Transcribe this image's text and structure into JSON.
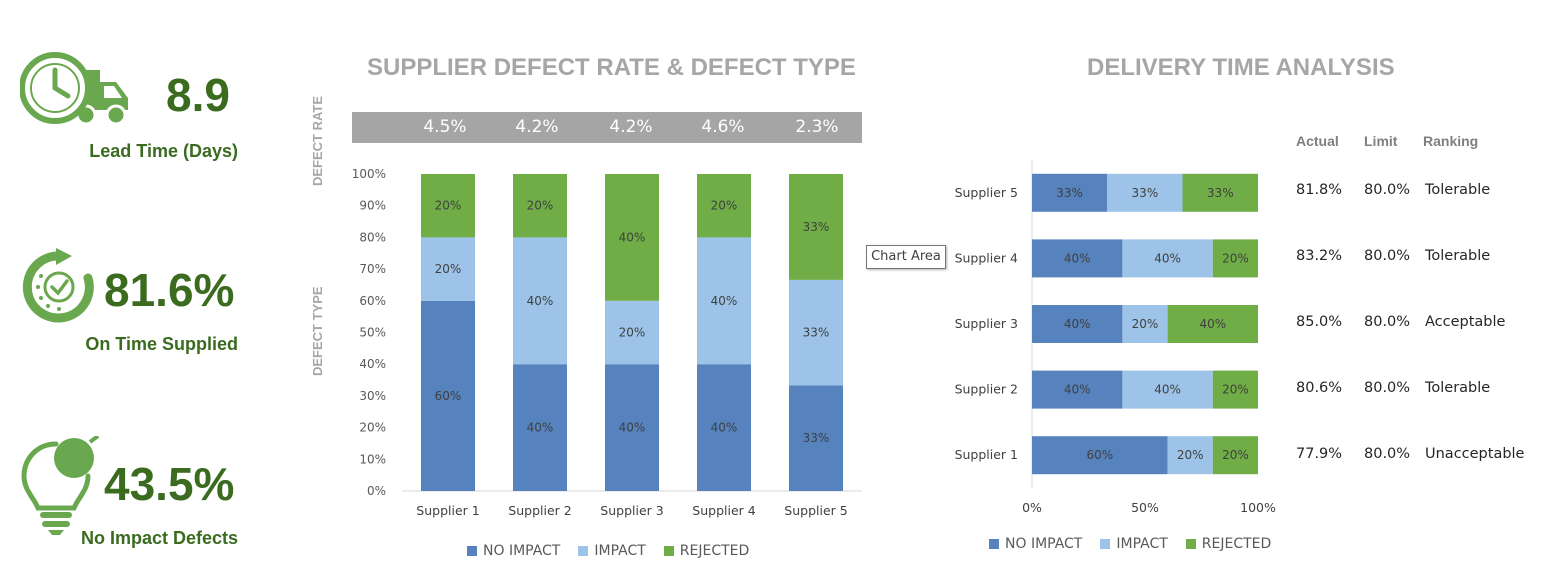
{
  "kpis": {
    "lead_time": {
      "value": "8.9",
      "label": "Lead Time (Days)"
    },
    "on_time": {
      "value": "81.6%",
      "label": "On Time Supplied"
    },
    "no_impact": {
      "value": "43.5%",
      "label": "No Impact Defects"
    }
  },
  "colors": {
    "no_impact": "#5682bd",
    "impact": "#9dc4e8",
    "rejected": "#70ad47",
    "kpi_green": "#6aa84f",
    "kpi_text": "#3a6b1f",
    "title_gray": "#a6a6a6"
  },
  "tooltip": "Chart Area",
  "table": {
    "headers": {
      "actual": "Actual",
      "limit": "Limit",
      "ranking": "Ranking"
    },
    "rows": [
      {
        "supplier": "Supplier 5",
        "actual": "81.8%",
        "limit": "80.0%",
        "ranking": "Tolerable"
      },
      {
        "supplier": "Supplier 4",
        "actual": "83.2%",
        "limit": "80.0%",
        "ranking": "Tolerable"
      },
      {
        "supplier": "Supplier 3",
        "actual": "85.0%",
        "limit": "80.0%",
        "ranking": "Acceptable"
      },
      {
        "supplier": "Supplier 2",
        "actual": "80.6%",
        "limit": "80.0%",
        "ranking": "Tolerable"
      },
      {
        "supplier": "Supplier 1",
        "actual": "77.9%",
        "limit": "80.0%",
        "ranking": "Unacceptable"
      }
    ]
  },
  "chart_data": [
    {
      "type": "bar",
      "stacked": true,
      "orientation": "vertical",
      "title": "SUPPLIER DEFECT RATE & DEFECT TYPE",
      "rate_label": "DEFECT RATE",
      "ylabel": "DEFECT TYPE",
      "categories": [
        "Supplier 1",
        "Supplier 2",
        "Supplier 3",
        "Supplier 4",
        "Supplier 5"
      ],
      "defect_rates": [
        "4.5%",
        "4.2%",
        "4.2%",
        "4.6%",
        "2.3%"
      ],
      "yticks": [
        "0%",
        "10%",
        "20%",
        "30%",
        "40%",
        "50%",
        "60%",
        "70%",
        "80%",
        "90%",
        "100%"
      ],
      "ylim": [
        0,
        100
      ],
      "series": [
        {
          "name": "NO IMPACT",
          "values": [
            60,
            40,
            40,
            40,
            33.3
          ],
          "labels": [
            "60%",
            "40%",
            "40%",
            "40%",
            "33%"
          ]
        },
        {
          "name": "IMPACT",
          "values": [
            20,
            40,
            20,
            40,
            33.3
          ],
          "labels": [
            "20%",
            "40%",
            "20%",
            "40%",
            "33%"
          ]
        },
        {
          "name": "REJECTED",
          "values": [
            20,
            20,
            40,
            20,
            33.4
          ],
          "labels": [
            "20%",
            "20%",
            "40%",
            "20%",
            "33%"
          ]
        }
      ],
      "legend": [
        "NO IMPACT",
        "IMPACT",
        "REJECTED"
      ]
    },
    {
      "type": "bar",
      "stacked": true,
      "orientation": "horizontal",
      "title": "DELIVERY TIME ANALYSIS",
      "categories": [
        "Supplier 5",
        "Supplier 4",
        "Supplier 3",
        "Supplier 2",
        "Supplier 1"
      ],
      "xticks": [
        "0%",
        "50%",
        "100%"
      ],
      "xlim": [
        0,
        100
      ],
      "series": [
        {
          "name": "NO IMPACT",
          "values": [
            33.3,
            40,
            40,
            40,
            60
          ],
          "labels": [
            "33%",
            "40%",
            "40%",
            "40%",
            "60%"
          ]
        },
        {
          "name": "IMPACT",
          "values": [
            33.3,
            40,
            20,
            40,
            20
          ],
          "labels": [
            "33%",
            "40%",
            "20%",
            "40%",
            "20%"
          ]
        },
        {
          "name": "REJECTED",
          "values": [
            33.4,
            20,
            40,
            20,
            20
          ],
          "labels": [
            "33%",
            "20%",
            "40%",
            "20%",
            "20%"
          ]
        }
      ],
      "legend": [
        "NO IMPACT",
        "IMPACT",
        "REJECTED"
      ]
    }
  ]
}
